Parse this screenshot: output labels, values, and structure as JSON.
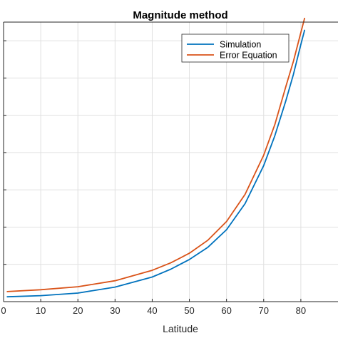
{
  "chart_data": {
    "type": "line",
    "title": "Magnitude method",
    "xlabel": "Latitude",
    "ylabel": "",
    "xlim": [
      0,
      90
    ],
    "ylim": [
      0,
      7.5
    ],
    "xticks": [
      0,
      10,
      20,
      30,
      40,
      50,
      60,
      70,
      80
    ],
    "xtick_labels": [
      "0",
      "10",
      "20",
      "30",
      "40",
      "50",
      "60",
      "70",
      "80"
    ],
    "yticks": [
      1,
      2,
      3,
      4,
      5,
      6,
      7
    ],
    "grid": true,
    "legend_position": "top-right",
    "series": [
      {
        "name": "Simulation",
        "color": "#0072BD",
        "x": [
          1,
          10,
          20,
          30,
          40,
          45,
          50,
          55,
          60,
          65,
          70,
          73,
          76,
          78,
          80,
          81
        ],
        "y": [
          0.13,
          0.16,
          0.23,
          0.39,
          0.66,
          0.87,
          1.13,
          1.46,
          1.93,
          2.63,
          3.65,
          4.45,
          5.4,
          6.1,
          6.9,
          7.28
        ]
      },
      {
        "name": "Error Equation",
        "color": "#D95319",
        "x": [
          1,
          10,
          20,
          30,
          40,
          45,
          50,
          55,
          60,
          65,
          70,
          73,
          76,
          78,
          80,
          81
        ],
        "y": [
          0.27,
          0.32,
          0.4,
          0.56,
          0.84,
          1.04,
          1.3,
          1.65,
          2.15,
          2.88,
          3.93,
          4.75,
          5.78,
          6.45,
          7.22,
          7.6
        ]
      }
    ]
  }
}
